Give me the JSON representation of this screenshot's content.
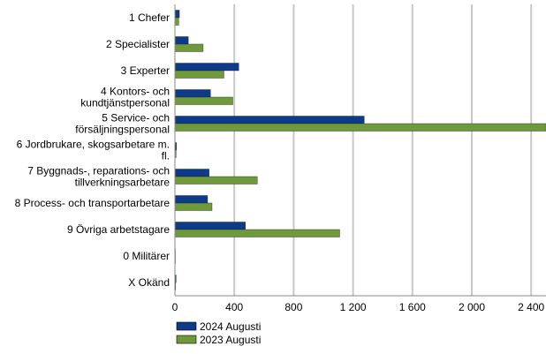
{
  "chart_data": {
    "type": "hbar",
    "categories": [
      "1 Chefer",
      "2 Specialister",
      "3 Experter",
      "4 Kontors- och\nkundtjänstpersonal",
      "5 Service- och\nförsäljningspersonal",
      "6 Jordbrukare, skogsarbetare m.\nfl.",
      "7 Byggnads-, reparations- och\ntillverkningsarbetare",
      "8 Process- och transportarbetare",
      "9 Övriga arbetstagare",
      "0 Militärer",
      "X Okänd"
    ],
    "series": [
      {
        "name": "2024 Augusti",
        "color": "#0e3a8a",
        "values": [
          30,
          90,
          430,
          240,
          1275,
          10,
          230,
          220,
          475,
          3,
          8
        ]
      },
      {
        "name": "2023 Augusti",
        "color": "#6f9a3c",
        "values": [
          25,
          190,
          330,
          390,
          2500,
          8,
          555,
          250,
          1110,
          3,
          5
        ]
      }
    ],
    "xlim": [
      0,
      2500
    ],
    "xticks": [
      0,
      400,
      800,
      {
        "value": 1200,
        "label": "1 200"
      },
      {
        "value": 1600,
        "label": "1 600"
      },
      {
        "value": 2000,
        "label": "2 000"
      },
      {
        "value": 2400,
        "label": "2 400"
      }
    ],
    "grid": true
  }
}
